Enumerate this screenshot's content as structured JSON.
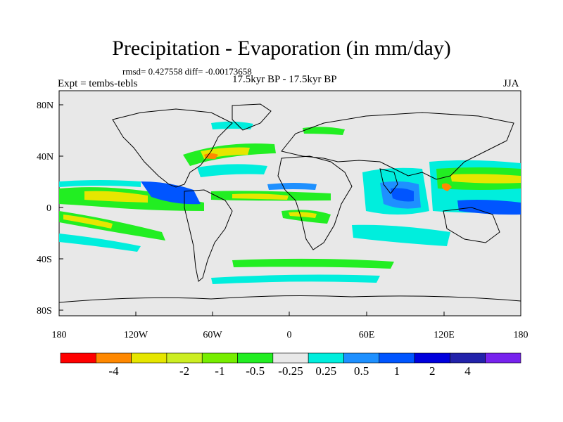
{
  "title": "Precipitation - Evaporation (in mm/day)",
  "stats": "rmsd= 0.427558 diff= -0.00173658",
  "subtitle": "17.5kyr BP - 17.5kyr BP",
  "experiment": "Expt = tembs-tebls",
  "season": "JJA",
  "lat_ticks": [
    "80N",
    "40N",
    "0",
    "40S",
    "80S"
  ],
  "lon_ticks": [
    "180",
    "120W",
    "60W",
    "0",
    "60E",
    "120E",
    "180"
  ],
  "colorbar": {
    "colors": [
      "#ff0000",
      "#ff8800",
      "#e6e600",
      "#ccee22",
      "#77ee00",
      "#22ee22",
      "#e8e8e8",
      "#00eedd",
      "#1e90ff",
      "#0055ff",
      "#0000dd",
      "#2222aa",
      "#7722ee"
    ],
    "labels": [
      "-4",
      "-2",
      "-1",
      "-0.5",
      "-0.25",
      "0.25",
      "0.5",
      "1",
      "2",
      "4"
    ]
  },
  "field_colors": {
    "land": "#e8e8e8",
    "ocean": "#e8e8e8",
    "coast": "#000000"
  }
}
